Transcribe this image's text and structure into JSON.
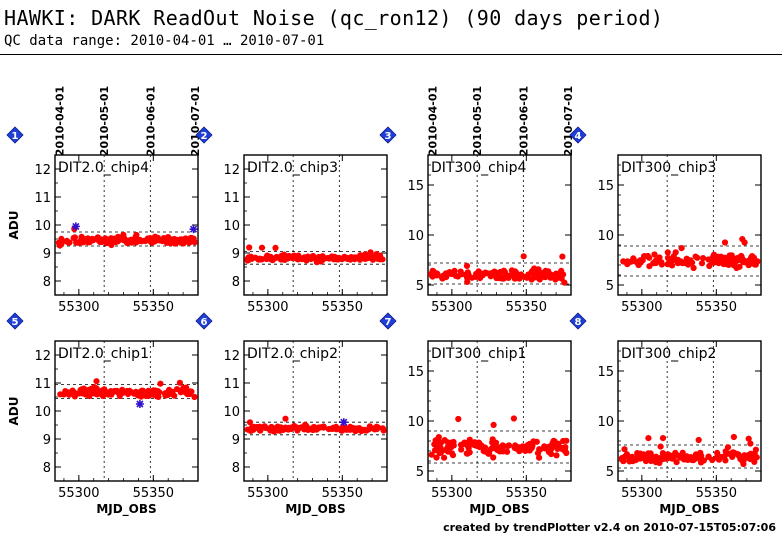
{
  "header": {
    "title": "HAWKI: DARK ReadOut Noise (qc_ron12) (90 days period)",
    "subtitle": "QC data range: 2010-04-01 … 2010-07-01"
  },
  "footer": {
    "credit": "created by trendPlotter v2.4 on 2010-07-15T05:07:06"
  },
  "colors": {
    "data": "#ff0000",
    "outlier": "#3311cc",
    "badge": "#1f3fd6",
    "band": "#000000"
  },
  "chart_data": [
    {
      "id": 1,
      "type": "scatter",
      "label": "DIT2.0_chip4",
      "ylabel": "ADU",
      "xlabel": "",
      "xlim": [
        55284,
        55380
      ],
      "ylim": [
        7.5,
        12.5
      ],
      "yticks": [
        8,
        9,
        10,
        11,
        12
      ],
      "xticks": [
        55300,
        55350
      ],
      "mean": 9.45,
      "band": [
        9.25,
        9.75
      ],
      "spread": 0.09,
      "top_dates": [
        "2010-04-01",
        "2010-05-01",
        "2010-06-01",
        "2010-07-01"
      ],
      "outliers": [
        {
          "x": 55298,
          "y": 9.95
        },
        {
          "x": 55377,
          "y": 9.85
        }
      ]
    },
    {
      "id": 2,
      "type": "scatter",
      "label": "DIT2.0_chip3",
      "ylabel": "",
      "xlabel": "",
      "xlim": [
        55284,
        55380
      ],
      "ylim": [
        7.5,
        12.5
      ],
      "yticks": [
        8,
        9,
        10,
        11,
        12
      ],
      "xticks": [
        55300,
        55350
      ],
      "mean": 8.82,
      "band": [
        8.6,
        9.05
      ],
      "spread": 0.06,
      "top_dates": [],
      "outliers": []
    },
    {
      "id": 3,
      "type": "scatter",
      "label": "DIT300_chip4",
      "ylabel": "",
      "xlabel": "",
      "xlim": [
        55284,
        55380
      ],
      "ylim": [
        4,
        18
      ],
      "yticks": [
        5,
        10,
        15
      ],
      "xticks": [
        55300,
        55350
      ],
      "mean": 6.0,
      "band": [
        5.1,
        7.2
      ],
      "spread": 0.35,
      "top_dates": [
        "2010-04-01",
        "2010-05-01",
        "2010-06-01",
        "2010-07-01"
      ],
      "outliers": []
    },
    {
      "id": 4,
      "type": "scatter",
      "label": "DIT300_chip3",
      "ylabel": "",
      "xlabel": "",
      "xlim": [
        55284,
        55380
      ],
      "ylim": [
        4,
        18
      ],
      "yticks": [
        5,
        10,
        15
      ],
      "xticks": [
        55300,
        55350
      ],
      "mean": 7.4,
      "band": [
        5.9,
        8.9
      ],
      "spread": 0.5,
      "top_dates": [],
      "outliers": []
    },
    {
      "id": 5,
      "type": "scatter",
      "label": "DIT2.0_chip1",
      "ylabel": "ADU",
      "xlabel": "MJD_OBS",
      "xlim": [
        55284,
        55380
      ],
      "ylim": [
        7.5,
        12.5
      ],
      "yticks": [
        8,
        9,
        10,
        11,
        12
      ],
      "xticks": [
        55300,
        55350
      ],
      "mean": 10.65,
      "band": [
        10.45,
        10.95
      ],
      "spread": 0.09,
      "top_dates": [],
      "outliers": [
        {
          "x": 55341,
          "y": 10.25
        }
      ]
    },
    {
      "id": 6,
      "type": "scatter",
      "label": "DIT2.0_chip2",
      "ylabel": "",
      "xlabel": "MJD_OBS",
      "xlim": [
        55284,
        55380
      ],
      "ylim": [
        7.5,
        12.5
      ],
      "yticks": [
        8,
        9,
        10,
        11,
        12
      ],
      "xticks": [
        55300,
        55350
      ],
      "mean": 9.37,
      "band": [
        9.15,
        9.6
      ],
      "spread": 0.06,
      "top_dates": [],
      "outliers": [
        {
          "x": 55351,
          "y": 9.6
        }
      ]
    },
    {
      "id": 7,
      "type": "scatter",
      "label": "DIT300_chip1",
      "ylabel": "",
      "xlabel": "MJD_OBS",
      "xlim": [
        55284,
        55380
      ],
      "ylim": [
        4,
        18
      ],
      "yticks": [
        5,
        10,
        15
      ],
      "xticks": [
        55300,
        55350
      ],
      "mean": 7.4,
      "band": [
        5.8,
        9.0
      ],
      "spread": 0.6,
      "top_dates": [],
      "outliers": []
    },
    {
      "id": 8,
      "type": "scatter",
      "label": "DIT300_chip2",
      "ylabel": "",
      "xlabel": "MJD_OBS",
      "xlim": [
        55284,
        55380
      ],
      "ylim": [
        4,
        18
      ],
      "yticks": [
        5,
        10,
        15
      ],
      "xticks": [
        55300,
        55350
      ],
      "mean": 6.4,
      "band": [
        5.3,
        7.6
      ],
      "spread": 0.4,
      "top_dates": [],
      "outliers": []
    }
  ]
}
